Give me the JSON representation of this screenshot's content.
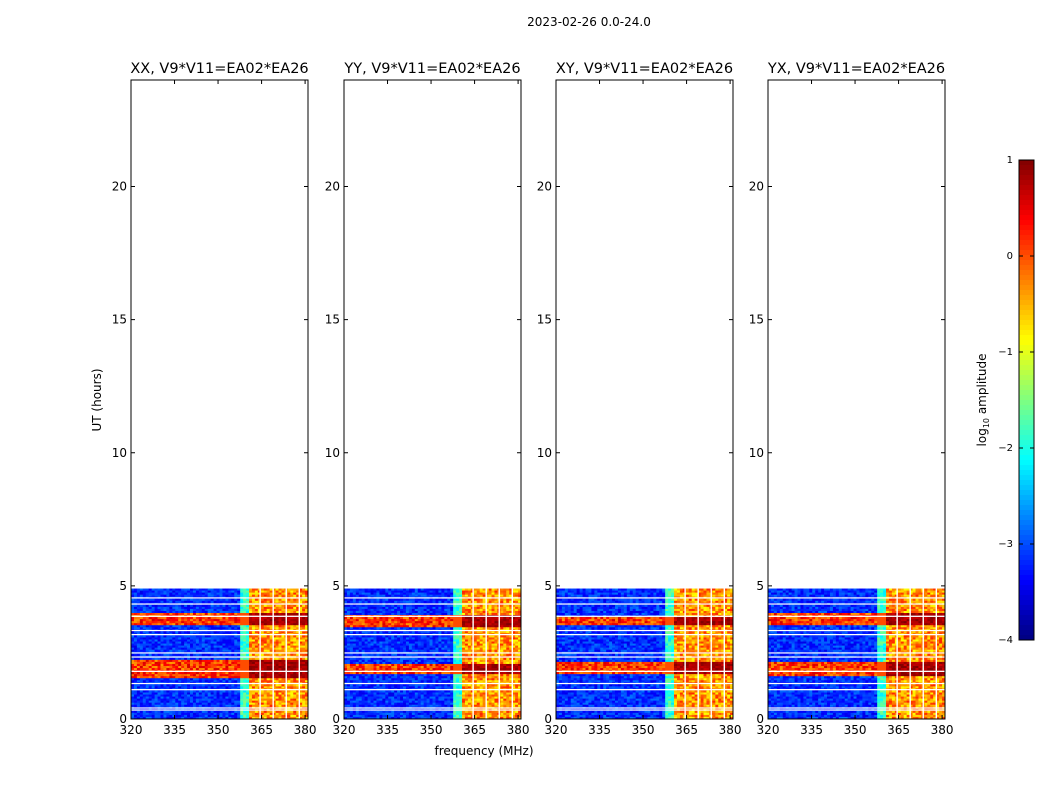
{
  "figure": {
    "suptitle": "2023-02-26 0.0-24.0",
    "xlabel": "frequency (MHz)",
    "ylabel": "UT (hours)"
  },
  "chart_data": {
    "type": "heatmap",
    "xlim": [
      320,
      381
    ],
    "ylim": [
      0,
      24
    ],
    "xticks": [
      320,
      335,
      350,
      365,
      380
    ],
    "yticks": [
      0,
      5,
      10,
      15,
      20
    ],
    "data_extent_hours": [
      0,
      4.9
    ],
    "rfi_band_mhz": [
      360.5,
      381
    ],
    "rfi_gap_channels_mhz": [
      364.5,
      369,
      373.5,
      378
    ],
    "panels": [
      {
        "title": "XX, V9*V11=EA02*EA26",
        "bright_hours": [
          [
            1.55,
            2.25
          ],
          [
            3.5,
            4.0
          ]
        ]
      },
      {
        "title": "YY, V9*V11=EA02*EA26",
        "bright_hours": [
          [
            1.7,
            2.1
          ],
          [
            3.45,
            3.9
          ]
        ]
      },
      {
        "title": "XY, V9*V11=EA02*EA26",
        "bright_hours": [
          [
            1.7,
            2.15
          ],
          [
            3.5,
            3.85
          ]
        ]
      },
      {
        "title": "YX, V9*V11=EA02*EA26",
        "bright_hours": [
          [
            1.6,
            2.15
          ],
          [
            3.55,
            3.95
          ]
        ]
      }
    ],
    "colorbar": {
      "label_main": "log",
      "label_sub": "10",
      "label_rest": " amplitude",
      "range": [
        -4,
        1
      ],
      "ticks": [
        1,
        0,
        -1,
        -2,
        -3,
        -4
      ],
      "tick_labels": [
        "1",
        "0",
        "−1",
        "−2",
        "−3",
        "−4"
      ],
      "colormap": "jet"
    }
  }
}
